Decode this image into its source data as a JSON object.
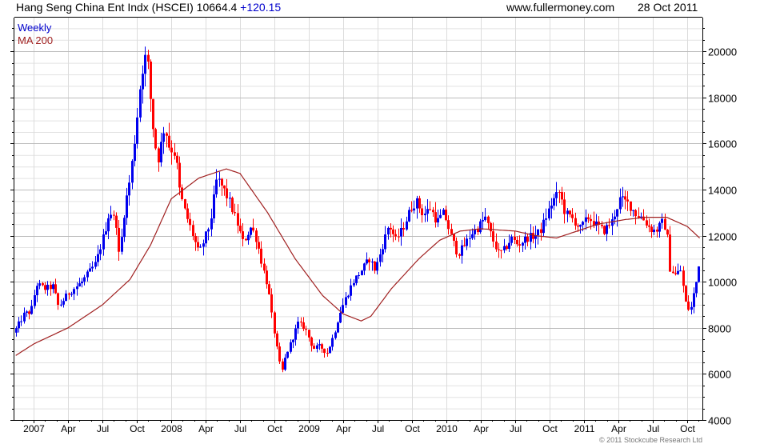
{
  "header": {
    "title": "Hang Seng China Ent Indx (HSCEI)",
    "last": "10664.4",
    "change": "+120.15",
    "site": "www.fullermoney.com",
    "date": "28 Oct 2011"
  },
  "footer": {
    "copyright": "© 2011 Stockcube Research Ltd"
  },
  "chart_data": {
    "type": "candlestick",
    "title": "Hang Seng China Ent Indx (HSCEI)",
    "legend": [
      {
        "label": "Weekly",
        "color": "#0000cc"
      },
      {
        "label": "MA 200",
        "color": "#a02020"
      }
    ],
    "legend_placement": "top-left",
    "colors": {
      "up": "#0000ee",
      "down": "#ff0000",
      "ma": "#a02020",
      "grid_major": "#bbbbbb",
      "grid_minor": "#e2e2e2"
    },
    "xlim": [
      2006.86,
      2011.86
    ],
    "ylim": [
      4000,
      21465
    ],
    "yticks": [
      4000,
      6000,
      8000,
      10000,
      12000,
      14000,
      16000,
      18000,
      20000
    ],
    "xticks": [
      {
        "t": 2007.0,
        "label": "2007"
      },
      {
        "t": 2007.25,
        "label": "Apr"
      },
      {
        "t": 2007.5,
        "label": "Jul"
      },
      {
        "t": 2007.75,
        "label": "Oct"
      },
      {
        "t": 2008.0,
        "label": "2008"
      },
      {
        "t": 2008.25,
        "label": "Apr"
      },
      {
        "t": 2008.5,
        "label": "Jul"
      },
      {
        "t": 2008.75,
        "label": "Oct"
      },
      {
        "t": 2009.0,
        "label": "2009"
      },
      {
        "t": 2009.25,
        "label": "Apr"
      },
      {
        "t": 2009.5,
        "label": "Jul"
      },
      {
        "t": 2009.75,
        "label": "Oct"
      },
      {
        "t": 2010.0,
        "label": "2010"
      },
      {
        "t": 2010.25,
        "label": "Apr"
      },
      {
        "t": 2010.5,
        "label": "Jul"
      },
      {
        "t": 2010.75,
        "label": "Oct"
      },
      {
        "t": 2011.0,
        "label": "2011"
      },
      {
        "t": 2011.25,
        "label": "Apr"
      },
      {
        "t": 2011.5,
        "label": "Jul"
      },
      {
        "t": 2011.75,
        "label": "Oct"
      }
    ],
    "close_keypoints": [
      [
        2006.87,
        7950
      ],
      [
        2006.93,
        8600
      ],
      [
        2006.98,
        8700
      ],
      [
        2007.02,
        9900
      ],
      [
        2007.08,
        9700
      ],
      [
        2007.14,
        9800
      ],
      [
        2007.18,
        8900
      ],
      [
        2007.25,
        9500
      ],
      [
        2007.35,
        10000
      ],
      [
        2007.45,
        10800
      ],
      [
        2007.52,
        12300
      ],
      [
        2007.55,
        13100
      ],
      [
        2007.6,
        12500
      ],
      [
        2007.62,
        11000
      ],
      [
        2007.66,
        13200
      ],
      [
        2007.7,
        14500
      ],
      [
        2007.74,
        16500
      ],
      [
        2007.78,
        19000
      ],
      [
        2007.8,
        19500
      ],
      [
        2007.82,
        20000
      ],
      [
        2007.86,
        17000
      ],
      [
        2007.9,
        15200
      ],
      [
        2007.95,
        16800
      ],
      [
        2007.98,
        15900
      ],
      [
        2008.03,
        15500
      ],
      [
        2008.06,
        13900
      ],
      [
        2008.1,
        13000
      ],
      [
        2008.14,
        12300
      ],
      [
        2008.2,
        11200
      ],
      [
        2008.28,
        12500
      ],
      [
        2008.33,
        14500
      ],
      [
        2008.38,
        14000
      ],
      [
        2008.42,
        13500
      ],
      [
        2008.48,
        12500
      ],
      [
        2008.52,
        11700
      ],
      [
        2008.58,
        12400
      ],
      [
        2008.62,
        11800
      ],
      [
        2008.66,
        10700
      ],
      [
        2008.7,
        9800
      ],
      [
        2008.73,
        8500
      ],
      [
        2008.77,
        7000
      ],
      [
        2008.8,
        6000
      ],
      [
        2008.83,
        6800
      ],
      [
        2008.87,
        7400
      ],
      [
        2008.92,
        8200
      ],
      [
        2008.97,
        8000
      ],
      [
        2009.03,
        7100
      ],
      [
        2009.08,
        7200
      ],
      [
        2009.13,
        6900
      ],
      [
        2009.18,
        7700
      ],
      [
        2009.22,
        8600
      ],
      [
        2009.26,
        9200
      ],
      [
        2009.32,
        10000
      ],
      [
        2009.38,
        10500
      ],
      [
        2009.44,
        11000
      ],
      [
        2009.48,
        10500
      ],
      [
        2009.53,
        11500
      ],
      [
        2009.58,
        12500
      ],
      [
        2009.63,
        11800
      ],
      [
        2009.68,
        12300
      ],
      [
        2009.74,
        13200
      ],
      [
        2009.78,
        13500
      ],
      [
        2009.83,
        12900
      ],
      [
        2009.88,
        13200
      ],
      [
        2009.93,
        12600
      ],
      [
        2009.98,
        13000
      ],
      [
        2010.03,
        12000
      ],
      [
        2010.08,
        11200
      ],
      [
        2010.12,
        11500
      ],
      [
        2010.18,
        12100
      ],
      [
        2010.22,
        12300
      ],
      [
        2010.28,
        12800
      ],
      [
        2010.33,
        11900
      ],
      [
        2010.38,
        11200
      ],
      [
        2010.42,
        11400
      ],
      [
        2010.47,
        11900
      ],
      [
        2010.52,
        11600
      ],
      [
        2010.58,
        11900
      ],
      [
        2010.64,
        12000
      ],
      [
        2010.68,
        12200
      ],
      [
        2010.72,
        12800
      ],
      [
        2010.77,
        13500
      ],
      [
        2010.82,
        13900
      ],
      [
        2010.86,
        13000
      ],
      [
        2010.92,
        12700
      ],
      [
        2010.97,
        12300
      ],
      [
        2011.03,
        12800
      ],
      [
        2011.08,
        12500
      ],
      [
        2011.14,
        12200
      ],
      [
        2011.2,
        12600
      ],
      [
        2011.26,
        13600
      ],
      [
        2011.32,
        13400
      ],
      [
        2011.38,
        12900
      ],
      [
        2011.42,
        12800
      ],
      [
        2011.48,
        12300
      ],
      [
        2011.52,
        12200
      ],
      [
        2011.57,
        12600
      ],
      [
        2011.6,
        12200
      ],
      [
        2011.62,
        10600
      ],
      [
        2011.66,
        10300
      ],
      [
        2011.7,
        10500
      ],
      [
        2011.74,
        9000
      ],
      [
        2011.77,
        8700
      ],
      [
        2011.8,
        9600
      ],
      [
        2011.84,
        10664.4
      ]
    ],
    "ma200_keypoints": [
      [
        2006.87,
        6800
      ],
      [
        2007.0,
        7300
      ],
      [
        2007.25,
        8000
      ],
      [
        2007.5,
        9000
      ],
      [
        2007.7,
        10100
      ],
      [
        2007.85,
        11600
      ],
      [
        2008.0,
        13600
      ],
      [
        2008.2,
        14500
      ],
      [
        2008.4,
        14900
      ],
      [
        2008.5,
        14700
      ],
      [
        2008.7,
        13000
      ],
      [
        2008.9,
        11000
      ],
      [
        2009.1,
        9400
      ],
      [
        2009.25,
        8600
      ],
      [
        2009.38,
        8300
      ],
      [
        2009.45,
        8500
      ],
      [
        2009.6,
        9700
      ],
      [
        2009.8,
        11000
      ],
      [
        2009.95,
        11800
      ],
      [
        2010.1,
        12200
      ],
      [
        2010.25,
        12300
      ],
      [
        2010.5,
        12200
      ],
      [
        2010.65,
        12000
      ],
      [
        2010.8,
        11900
      ],
      [
        2010.95,
        12200
      ],
      [
        2011.1,
        12500
      ],
      [
        2011.3,
        12700
      ],
      [
        2011.45,
        12800
      ],
      [
        2011.6,
        12800
      ],
      [
        2011.75,
        12400
      ],
      [
        2011.84,
        11900
      ]
    ]
  }
}
